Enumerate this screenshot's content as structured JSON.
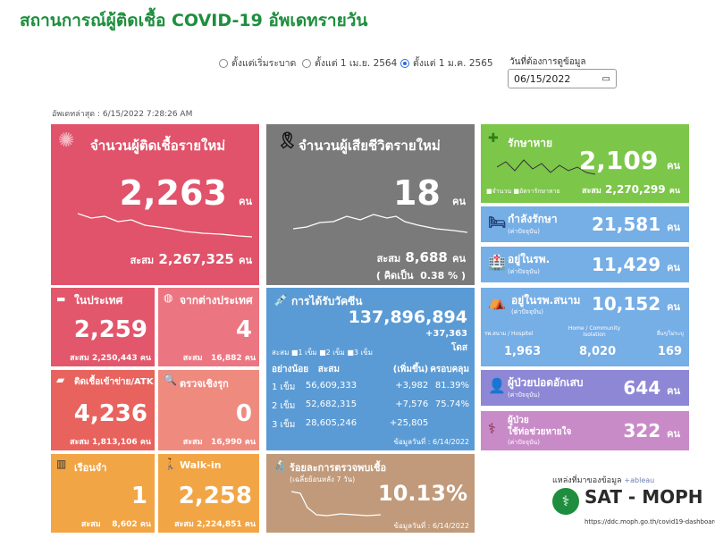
{
  "header": {
    "title": "สถานการณ์ผู้ติดเชื้อ COVID-19 อัพเดทรายวัน"
  },
  "filters": {
    "options": [
      "ตั้งแต่เริ่มระบาด",
      "ตั้งแต่ 1 เม.ย. 2564",
      "ตั้งแต่ 1 ม.ค. 2565"
    ],
    "selected_index": 2,
    "date_label": "วันที่ต้องการดูข้อมูล",
    "date_value": "06/15/2022"
  },
  "updated": "อัพเดทล่าสุด : 6/15/2022 7:28:26 AM",
  "unit": "คน",
  "cumulative_label": "สะสม",
  "new_cases": {
    "title": "จำนวนผู้ติดเชื้อรายใหม่",
    "value": "2,263",
    "cumulative": "2,267,325",
    "color": "#e0536a"
  },
  "deaths": {
    "title": "จำนวนผู้เสียชีวิตรายใหม่",
    "value": "18",
    "cumulative": "8,688",
    "percent_label": "( คิดเป็น",
    "percent": "0.38 %  )",
    "color": "#7a7a7a"
  },
  "domestic": {
    "title": "ในประเทศ",
    "value": "2,259",
    "cumulative": "2,250,443",
    "color": "#e2576c"
  },
  "abroad": {
    "title": "จากต่างประเทศ",
    "value": "4",
    "cumulative": "16,882",
    "color": "#eb7580"
  },
  "atk": {
    "title": "ติดเชื้อเข้าข่าย/ATK",
    "value": "4,236",
    "cumulative": "1,813,106",
    "color": "#e8635e"
  },
  "proactive": {
    "title": "ตรวจเชิงรุก",
    "value": "0",
    "cumulative": "16,990",
    "color": "#ef8a7f"
  },
  "prison": {
    "title": "เรือนจำ",
    "value": "1",
    "cumulative": "8,602",
    "color": "#f2a544"
  },
  "walkin": {
    "title": "Walk-in",
    "value": "2,258",
    "cumulative": "2,224,851",
    "color": "#f2a544"
  },
  "vaccine": {
    "title": "การได้รับวัคซีน",
    "total": "137,896,894",
    "new": "+37,363",
    "dose_unit": "โดส",
    "legend": [
      "สะสม",
      "1 เข็ม",
      "2 เข็ม",
      "3 เข็ม"
    ],
    "headers": [
      "อย่างน้อย",
      "สะสม",
      "(เพิ่มขึ้น)",
      "ครอบคลุม"
    ],
    "rows": [
      {
        "dose": "1 เข็ม",
        "total": "56,609,333",
        "inc": "+3,982",
        "cov": "81.39%"
      },
      {
        "dose": "2 เข็ม",
        "total": "52,682,315",
        "inc": "+7,576",
        "cov": "75.74%"
      },
      {
        "dose": "3 เข็ม",
        "total": "28,605,246",
        "inc": "+25,805",
        "cov": ""
      }
    ],
    "date_note": "ข้อมูลวันที่ : 6/14/2022",
    "color": "#5b9bd5"
  },
  "positivity": {
    "title": "ร้อยละการตรวจพบเชื้อ",
    "subtitle": "(เฉลี่ยย้อนหลัง 7 วัน)",
    "value": "10.13%",
    "date_note": "ข้อมูลวันที่ : 6/14/2022",
    "color": "#c09a7a"
  },
  "recovered": {
    "title": "รักษาหาย",
    "value": "2,109",
    "cumulative": "2,270,299",
    "legend": [
      "จำนวน",
      "อัตรารักษาหาย"
    ],
    "color": "#7cc64a"
  },
  "treating": {
    "title": "กำลังรักษา",
    "subtitle": "(ค่าปัจจุบัน)",
    "value": "21,581",
    "color": "#76aee6"
  },
  "hospital": {
    "title": "อยู่ในรพ.",
    "subtitle": "(ค่าปัจจุบัน)",
    "value": "11,429",
    "color": "#76aee6"
  },
  "field": {
    "title": "อยู่ในรพ.สนาม",
    "subtitle": "(ค่าปัจจุบัน)",
    "value": "10,152",
    "cols": [
      "รพ.สนาม / Hospitel",
      "Home / Community Isolation",
      "อื่นๆ/ไม่ระบุ"
    ],
    "vals": [
      "1,963",
      "8,020",
      "169"
    ],
    "color": "#76aee6"
  },
  "severe": {
    "title": "ผู้ป่วยปอดอักเสบ",
    "subtitle": "(ค่าปัจจุบัน)",
    "value": "644",
    "color": "#8d87d6"
  },
  "ventilator": {
    "title": "ผู้ป่วย",
    "title2": "ใช้ท่อช่วยหายใจ",
    "subtitle": "(ค่าปัจจุบัน)",
    "value": "322",
    "color": "#c98bc8"
  },
  "source": {
    "label": "แหล่งที่มาของข้อมูล",
    "tableau": "+ableau",
    "org": "SAT - MOPH",
    "url": "https://ddc.moph.go.th/covid19-dashboard"
  }
}
